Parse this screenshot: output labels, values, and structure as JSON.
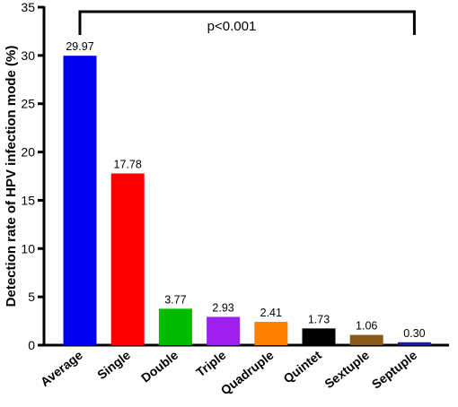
{
  "chart_data": {
    "type": "bar",
    "categories": [
      "Average",
      "Single",
      "Double",
      "Triple",
      "Quadruple",
      "Quintet",
      "Sextuple",
      "Septuple"
    ],
    "values": [
      29.97,
      17.78,
      3.77,
      2.93,
      2.41,
      1.73,
      1.06,
      0.3
    ],
    "value_labels": [
      "29.97",
      "17.78",
      "3.77",
      "2.93",
      "2.41",
      "1.73",
      "1.06",
      "0.30"
    ],
    "colors": [
      "#0000ee",
      "#ff0000",
      "#00bb00",
      "#a020f0",
      "#ff8000",
      "#000000",
      "#8b5a1a",
      "#1a1aa0"
    ],
    "ylabel": "Detection rate of HPV infection mode (%)",
    "xlabel": "",
    "ylim": [
      0,
      35
    ],
    "yticks": [
      0,
      5,
      10,
      15,
      20,
      25,
      30,
      35
    ],
    "grid": false,
    "annotation": {
      "text": "p<0.001",
      "from": "Average",
      "to": "Septuple"
    }
  }
}
